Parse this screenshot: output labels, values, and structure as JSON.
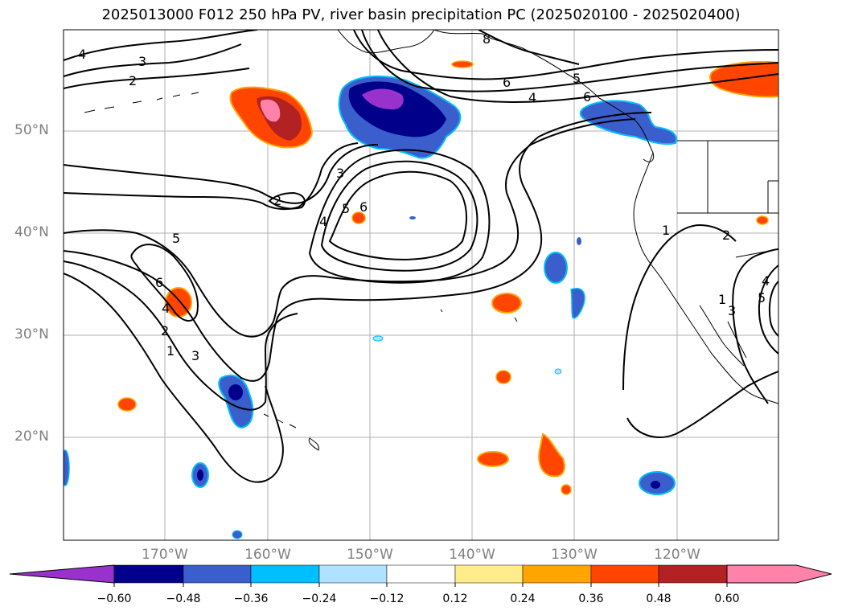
{
  "title": "2025013000 F012 250 hPa PV, river basin precipitation PC (2025020100 - 2025020400)",
  "map": {
    "lat_labels": [
      {
        "text": "50°N",
        "lat": 50
      },
      {
        "text": "40°N",
        "lat": 40
      },
      {
        "text": "30°N",
        "lat": 30
      },
      {
        "text": "20°N",
        "lat": 20
      }
    ],
    "lon_labels": [
      {
        "text": "170°W",
        "lon": -170
      },
      {
        "text": "160°W",
        "lon": -160
      },
      {
        "text": "150°W",
        "lon": -150
      },
      {
        "text": "140°W",
        "lon": -140
      },
      {
        "text": "130°W",
        "lon": -130
      },
      {
        "text": "120°W",
        "lon": -120
      }
    ],
    "pv_contour_labels": [
      "4",
      "3",
      "2",
      "8",
      "6",
      "5",
      "4",
      "6",
      "3",
      "2",
      "5",
      "4",
      "6",
      "5",
      "6",
      "4",
      "2",
      "1",
      "3",
      "1",
      "2",
      "1",
      "3",
      "5",
      "4"
    ]
  },
  "colorbar": {
    "ticks": [
      "−0.60",
      "−0.48",
      "−0.36",
      "−0.24",
      "−0.12",
      "0.12",
      "0.24",
      "0.36",
      "0.48",
      "0.60"
    ],
    "colors": [
      "#9932cc",
      "#00008b",
      "#3a5fcd",
      "#00bfff",
      "#b0e2ff",
      "#ffffff",
      "#ffec8b",
      "#ffa500",
      "#ff4500",
      "#b22222",
      "#ff82ab"
    ]
  }
}
